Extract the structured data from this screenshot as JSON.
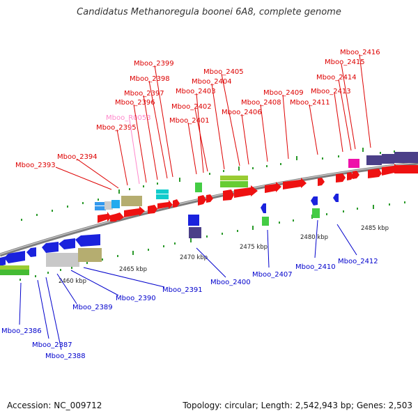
{
  "title": "Candidatus Methanoregula boonei 6A8, complete genome",
  "footer": {
    "accession": "Accession: NC_009712",
    "summary": "Topology: circular; Length: 2,542,943 bp; Genes: 2,503"
  },
  "colors": {
    "forward_label": "#dd0000",
    "reverse_label": "#0000cc",
    "rna_label": "#ff88cc",
    "backbone": "#8a8a8a",
    "tick": "#2a9a2a"
  },
  "scale_labels": [
    "2460 kbp",
    "2465 kbp",
    "2470 kbp",
    "2475 kbp",
    "2480 kbp",
    "2485 kbp"
  ],
  "forward_genes": [
    "Mboo_2393",
    "Mboo_2394",
    "Mboo_2395",
    "Mboo_R0053",
    "Mboo_2396",
    "Mboo_2397",
    "Mboo_2398",
    "Mboo_2399",
    "Mboo_2401",
    "Mboo_2402",
    "Mboo_2403",
    "Mboo_2404",
    "Mboo_2405",
    "Mboo_2406",
    "Mboo_2408",
    "Mboo_2409",
    "Mboo_2411",
    "Mboo_2413",
    "Mboo_2414",
    "Mboo_2415",
    "Mboo_2416"
  ],
  "reverse_genes": [
    "Mboo_2386",
    "Mboo_2387",
    "Mboo_2388",
    "Mboo_2389",
    "Mboo_2390",
    "Mboo_2391",
    "Mboo_2400",
    "Mboo_2407",
    "Mboo_2410",
    "Mboo_2412"
  ]
}
